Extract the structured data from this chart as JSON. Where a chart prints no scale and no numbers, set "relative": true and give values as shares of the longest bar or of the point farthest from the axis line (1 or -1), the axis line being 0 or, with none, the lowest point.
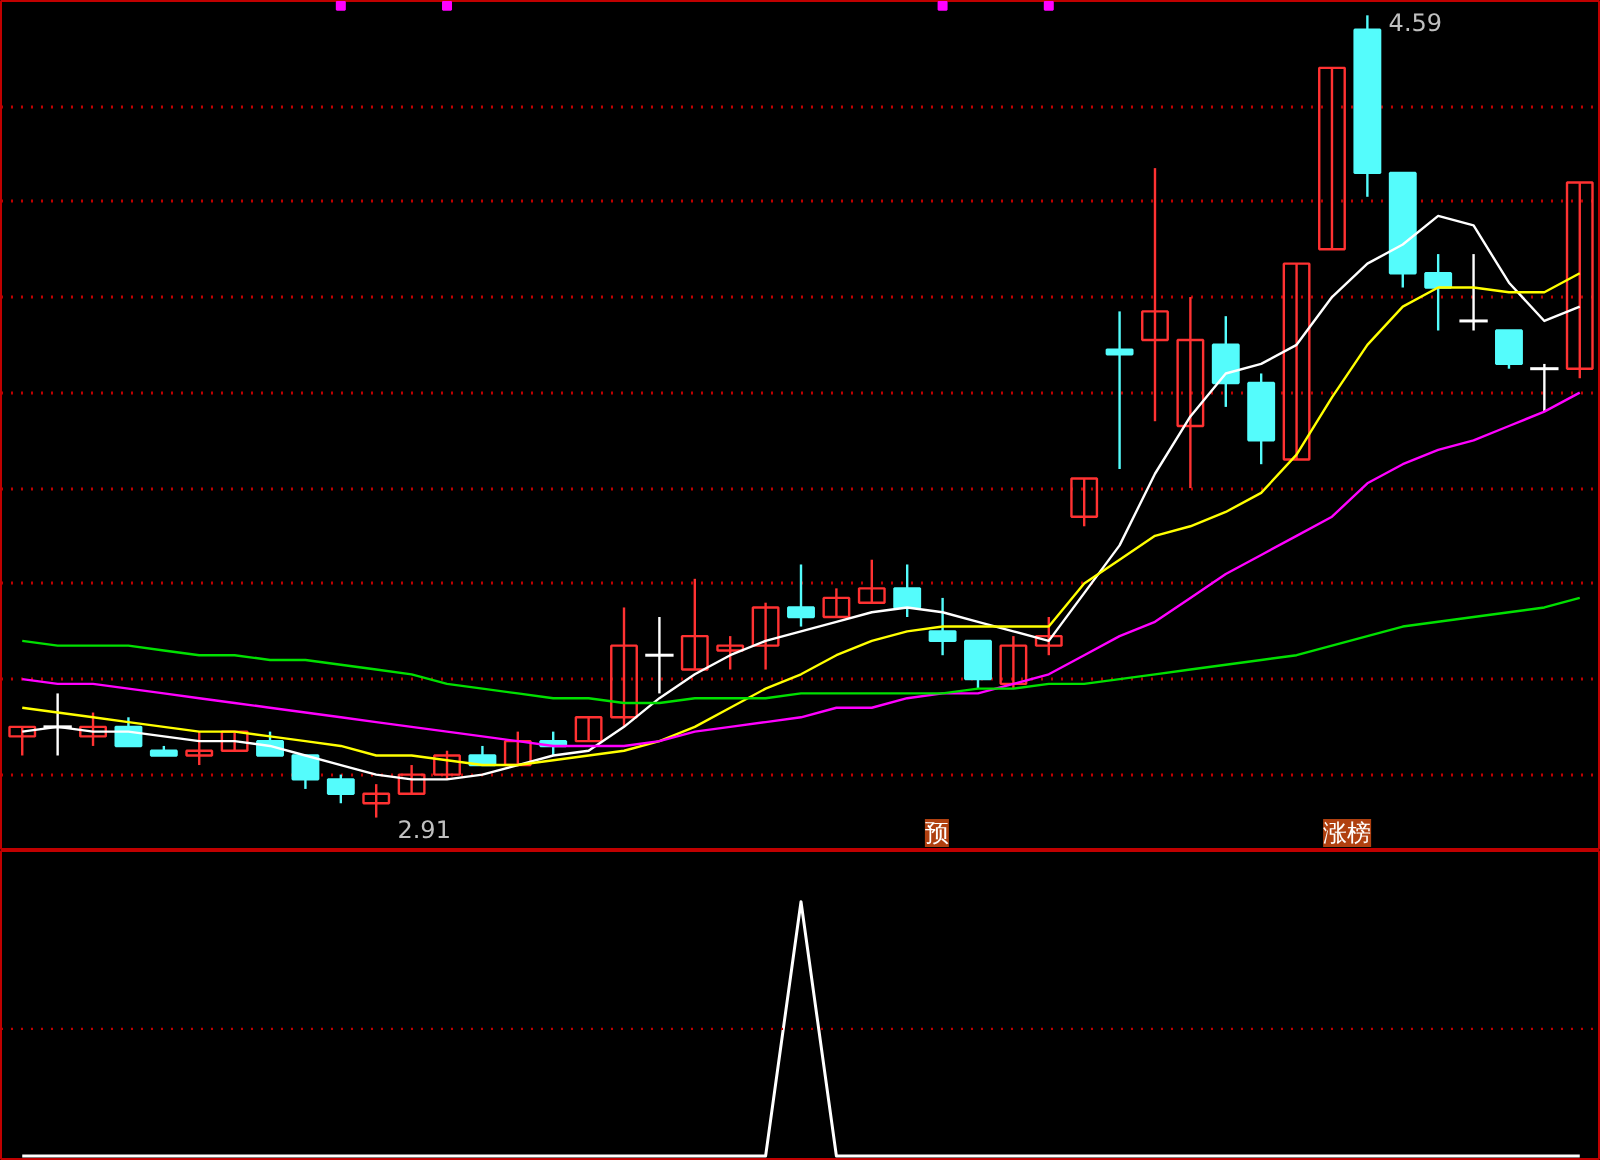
{
  "chart_data": [
    {
      "type": "candlestick",
      "categories": [
        null,
        null,
        null,
        null,
        null,
        null,
        null,
        null,
        null,
        null,
        null,
        null,
        null,
        null,
        null,
        null,
        null,
        null,
        null,
        null,
        null,
        null,
        null,
        null,
        null,
        null,
        null,
        null,
        null,
        null,
        null,
        null,
        null,
        null,
        null,
        null,
        null,
        null,
        null,
        null,
        null,
        null,
        null,
        null,
        null
      ],
      "ohlc": [
        [
          3.08,
          3.1,
          3.04,
          3.1
        ],
        [
          3.1,
          3.17,
          3.04,
          3.1
        ],
        [
          3.08,
          3.13,
          3.06,
          3.1
        ],
        [
          3.1,
          3.12,
          3.06,
          3.06
        ],
        [
          3.05,
          3.06,
          3.04,
          3.04
        ],
        [
          3.04,
          3.09,
          3.02,
          3.05
        ],
        [
          3.05,
          3.09,
          3.05,
          3.09
        ],
        [
          3.07,
          3.09,
          3.04,
          3.04
        ],
        [
          3.04,
          3.04,
          2.97,
          2.99
        ],
        [
          2.99,
          3.0,
          2.94,
          2.96
        ],
        [
          2.94,
          2.98,
          2.91,
          2.96
        ],
        [
          2.96,
          3.02,
          2.96,
          3.0
        ],
        [
          3.0,
          3.05,
          2.99,
          3.04
        ],
        [
          3.04,
          3.06,
          3.02,
          3.02
        ],
        [
          3.02,
          3.09,
          3.02,
          3.07
        ],
        [
          3.07,
          3.09,
          3.04,
          3.06
        ],
        [
          3.07,
          3.12,
          3.07,
          3.12
        ],
        [
          3.12,
          3.35,
          3.1,
          3.27
        ],
        [
          3.25,
          3.33,
          3.17,
          3.25
        ],
        [
          3.22,
          3.41,
          3.22,
          3.29
        ],
        [
          3.26,
          3.29,
          3.22,
          3.27
        ],
        [
          3.27,
          3.36,
          3.22,
          3.35
        ],
        [
          3.35,
          3.44,
          3.31,
          3.33
        ],
        [
          3.33,
          3.39,
          3.33,
          3.37
        ],
        [
          3.36,
          3.45,
          3.36,
          3.39
        ],
        [
          3.39,
          3.44,
          3.33,
          3.35
        ],
        [
          3.3,
          3.37,
          3.25,
          3.28
        ],
        [
          3.28,
          3.28,
          3.18,
          3.2
        ],
        [
          3.19,
          3.29,
          3.18,
          3.27
        ],
        [
          3.27,
          3.33,
          3.25,
          3.29
        ],
        [
          3.54,
          3.62,
          3.52,
          3.62
        ],
        [
          3.89,
          3.97,
          3.64,
          3.88
        ],
        [
          3.91,
          4.27,
          3.74,
          3.97
        ],
        [
          3.73,
          4.0,
          3.6,
          3.91
        ],
        [
          3.9,
          3.96,
          3.77,
          3.82
        ],
        [
          3.82,
          3.84,
          3.65,
          3.7
        ],
        [
          3.66,
          4.07,
          3.66,
          4.07
        ],
        [
          4.1,
          4.48,
          4.1,
          4.48
        ],
        [
          4.56,
          4.59,
          4.21,
          4.26
        ],
        [
          4.26,
          4.26,
          4.02,
          4.05
        ],
        [
          4.05,
          4.09,
          3.93,
          4.02
        ],
        [
          3.95,
          4.09,
          3.93,
          3.95
        ],
        [
          3.93,
          3.93,
          3.85,
          3.86
        ],
        [
          3.85,
          3.86,
          3.76,
          3.85
        ],
        [
          3.85,
          4.24,
          3.83,
          4.24
        ]
      ],
      "colors": [
        "#ff3232",
        "#ffffff",
        "#ff3232",
        "#54fcfc",
        "#54fcfc",
        "#ff3232",
        "#ff3232",
        "#54fcfc",
        "#54fcfc",
        "#54fcfc",
        "#ff3232",
        "#ff3232",
        "#ff3232",
        "#54fcfc",
        "#ff3232",
        "#54fcfc",
        "#ff3232",
        "#ff3232",
        "#ffffff",
        "#ff3232",
        "#ff3232",
        "#ff3232",
        "#54fcfc",
        "#ff3232",
        "#ff3232",
        "#54fcfc",
        "#54fcfc",
        "#54fcfc",
        "#ff3232",
        "#ff3232",
        "#ff3232",
        "#54fcfc",
        "#ff3232",
        "#ff3232",
        "#54fcfc",
        "#54fcfc",
        "#ff3232",
        "#ff3232",
        "#54fcfc",
        "#54fcfc",
        "#54fcfc",
        "#ffffff",
        "#54fcfc",
        "#ffffff",
        "#ff3232"
      ],
      "series": [
        {
          "type": "line",
          "color": "#ffffff",
          "values": [
            3.09,
            3.1,
            3.09,
            3.09,
            3.08,
            3.07,
            3.07,
            3.06,
            3.04,
            3.02,
            3.0,
            2.99,
            2.99,
            3.0,
            3.02,
            3.04,
            3.05,
            3.1,
            3.16,
            3.21,
            3.25,
            3.28,
            3.3,
            3.32,
            3.34,
            3.35,
            3.34,
            3.32,
            3.3,
            3.28,
            3.38,
            3.48,
            3.63,
            3.75,
            3.84,
            3.86,
            3.9,
            4.0,
            4.07,
            4.11,
            4.17,
            4.15,
            4.03,
            3.95,
            3.98
          ]
        },
        {
          "type": "line",
          "color": "#ffff00",
          "values": [
            3.14,
            3.13,
            3.12,
            3.11,
            3.1,
            3.09,
            3.09,
            3.08,
            3.07,
            3.06,
            3.04,
            3.04,
            3.03,
            3.02,
            3.02,
            3.03,
            3.04,
            3.05,
            3.07,
            3.1,
            3.14,
            3.18,
            3.21,
            3.25,
            3.28,
            3.3,
            3.31,
            3.31,
            3.31,
            3.31,
            3.4,
            3.45,
            3.5,
            3.52,
            3.55,
            3.59,
            3.67,
            3.79,
            3.9,
            3.98,
            4.02,
            4.02,
            4.01,
            4.01,
            4.05
          ]
        },
        {
          "type": "line",
          "color": "#ff00ff",
          "values": [
            3.2,
            3.19,
            3.19,
            3.18,
            3.17,
            3.16,
            3.15,
            3.14,
            3.13,
            3.12,
            3.11,
            3.1,
            3.09,
            3.08,
            3.07,
            3.06,
            3.06,
            3.06,
            3.07,
            3.09,
            3.1,
            3.11,
            3.12,
            3.14,
            3.14,
            3.16,
            3.17,
            3.17,
            3.19,
            3.21,
            3.25,
            3.29,
            3.32,
            3.37,
            3.42,
            3.46,
            3.5,
            3.54,
            3.61,
            3.65,
            3.68,
            3.7,
            3.73,
            3.76,
            3.8
          ]
        },
        {
          "type": "line",
          "color": "#00e000",
          "values": [
            3.28,
            3.27,
            3.27,
            3.27,
            3.26,
            3.25,
            3.25,
            3.24,
            3.24,
            3.23,
            3.22,
            3.21,
            3.19,
            3.18,
            3.17,
            3.16,
            3.16,
            3.15,
            3.15,
            3.16,
            3.16,
            3.16,
            3.17,
            3.17,
            3.17,
            3.17,
            3.17,
            3.18,
            3.18,
            3.19,
            3.19,
            3.2,
            3.21,
            3.22,
            3.23,
            3.24,
            3.25,
            3.27,
            3.29,
            3.31,
            3.32,
            3.33,
            3.34,
            3.35,
            3.37
          ]
        },
        {
          "type": "scatter",
          "color": "#ff00ff",
          "marker": "square",
          "values": [
            null,
            null,
            null,
            null,
            null,
            null,
            null,
            null,
            null,
            4.61,
            null,
            null,
            4.61,
            null,
            null,
            null,
            null,
            null,
            null,
            null,
            null,
            null,
            null,
            null,
            null,
            null,
            4.61,
            null,
            null,
            4.61,
            null,
            null,
            null,
            null,
            null,
            null,
            null,
            null,
            null,
            null,
            null,
            null,
            null,
            null,
            null
          ]
        }
      ],
      "ylim": [
        2.84,
        4.62
      ],
      "yticks": [
        {
          "value": 3.0,
          "label": null
        },
        {
          "value": 3.2,
          "label": null
        },
        {
          "value": 3.4,
          "label": null
        },
        {
          "value": 3.6,
          "label": null
        },
        {
          "value": 3.8,
          "label": null
        },
        {
          "value": 4.0,
          "label": null
        },
        {
          "value": 4.2,
          "label": null
        },
        {
          "value": 4.4,
          "label": null
        }
      ],
      "grid": "y",
      "tick_labels": false,
      "line_style": "solid",
      "annotations": [
        "4.59",
        "2.91",
        "预",
        "涨榜"
      ]
    },
    {
      "type": "line",
      "categories": [
        null,
        null,
        null,
        null,
        null,
        null,
        null,
        null,
        null,
        null,
        null,
        null,
        null,
        null,
        null,
        null,
        null,
        null,
        null,
        null,
        null,
        null,
        null,
        null,
        null,
        null,
        null,
        null,
        null,
        null,
        null,
        null,
        null,
        null,
        null,
        null,
        null,
        null,
        null,
        null,
        null,
        null,
        null,
        null,
        null
      ],
      "relative": true,
      "series": [
        {
          "color": "#ffffff",
          "values": [
            0,
            0,
            0,
            0,
            0,
            0,
            0,
            0,
            0,
            0,
            0,
            0,
            0,
            0,
            0,
            0,
            0,
            0,
            0,
            0,
            0,
            0,
            1,
            0,
            0,
            0,
            0,
            0,
            0,
            0,
            0,
            0,
            0,
            0,
            0,
            0,
            0,
            0,
            0,
            0,
            0,
            0,
            0,
            0,
            0
          ]
        }
      ],
      "ref_lines": [
        {
          "axis": "y",
          "value": 0.5,
          "label": null,
          "color": "#c00000",
          "line_style": "dotted"
        }
      ],
      "tick_labels": false
    }
  ]
}
